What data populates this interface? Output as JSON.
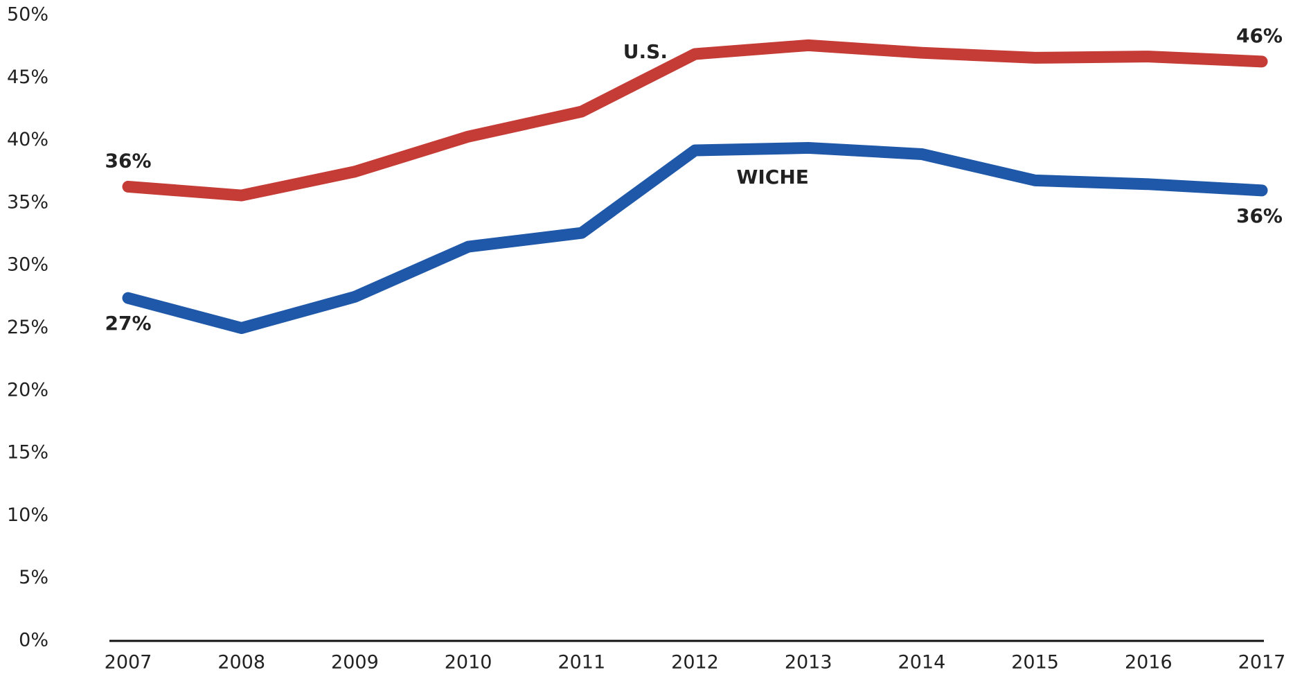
{
  "chart_data": {
    "type": "line",
    "x": [
      2007,
      2008,
      2009,
      2010,
      2011,
      2012,
      2013,
      2014,
      2015,
      2016,
      2017
    ],
    "series": [
      {
        "name": "U.S.",
        "color": "#c53b35",
        "values": [
          36.3,
          35.6,
          37.5,
          40.3,
          42.3,
          46.9,
          47.6,
          47.0,
          46.6,
          46.7,
          46.3
        ],
        "value_labels": [
          "36%",
          null,
          null,
          null,
          null,
          null,
          null,
          null,
          null,
          null,
          "46%"
        ]
      },
      {
        "name": "WICHE",
        "color": "#1f58a8",
        "values": [
          27.4,
          25.0,
          27.5,
          31.5,
          32.6,
          39.2,
          39.4,
          38.9,
          36.8,
          36.5,
          36.0
        ],
        "value_labels": [
          "27%",
          null,
          null,
          null,
          null,
          null,
          null,
          null,
          null,
          null,
          "36%"
        ]
      }
    ],
    "xlim": [
      2007,
      2017
    ],
    "xticks": [
      2007,
      2008,
      2009,
      2010,
      2011,
      2012,
      2013,
      2014,
      2015,
      2016,
      2017
    ],
    "ylim": [
      0,
      50
    ],
    "yticks": [
      {
        "value": 0,
        "label": "0%"
      },
      {
        "value": 5,
        "label": "5%"
      },
      {
        "value": 10,
        "label": "10%"
      },
      {
        "value": 15,
        "label": "15%"
      },
      {
        "value": 20,
        "label": "20%"
      },
      {
        "value": 25,
        "label": "25%"
      },
      {
        "value": 30,
        "label": "30%"
      },
      {
        "value": 35,
        "label": "35%"
      },
      {
        "value": 40,
        "label": "40%"
      },
      {
        "value": 45,
        "label": "45%"
      },
      {
        "value": 50,
        "label": "50%"
      }
    ],
    "grid": false
  }
}
